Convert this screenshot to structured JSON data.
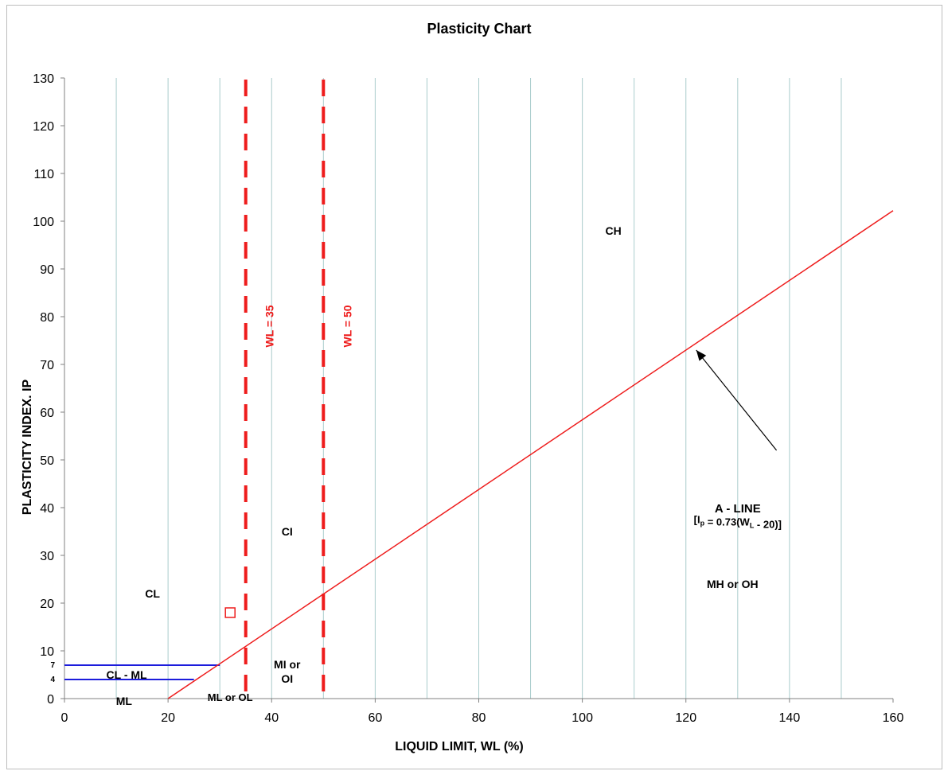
{
  "chart_data": {
    "type": "line",
    "title": "Plasticity Chart",
    "xlabel": "LIQUID LIMIT, WL (%)",
    "ylabel": "PLASTICITY INDEX. IP",
    "xlim": [
      0,
      160
    ],
    "ylim": [
      0,
      130
    ],
    "x_ticks": [
      "0",
      "20",
      "40",
      "60",
      "80",
      "100",
      "120",
      "140",
      "160"
    ],
    "y_ticks": [
      "0",
      "10",
      "20",
      "30",
      "40",
      "50",
      "60",
      "70",
      "80",
      "90",
      "100",
      "110",
      "120",
      "130"
    ],
    "x_minor_grid_step": 10,
    "grid": true,
    "a_line": {
      "x": [
        20,
        160
      ],
      "y": [
        0,
        102.2
      ],
      "color": "#ee1c1c"
    },
    "a_line_label": "A - LINE",
    "a_line_equation": {
      "open": "[I",
      "sub1": "p",
      "mid": " = 0.73(W",
      "sub2": "L",
      "close": " - 20)]"
    },
    "dividers": [
      {
        "x": 35,
        "label": "WL = 35",
        "color": "#ee1c1c",
        "dashed": true
      },
      {
        "x": 50,
        "label": "WL = 50",
        "color": "#ee1c1c",
        "dashed": true
      }
    ],
    "cl_ml_band": {
      "lines": [
        {
          "y": 7,
          "x_end": 30,
          "label": "7"
        },
        {
          "y": 4,
          "x_end": 25,
          "label": "4"
        }
      ],
      "color": "#1c1cdc"
    },
    "regions": [
      {
        "label": "CH",
        "x": 106,
        "y": 98
      },
      {
        "label": "CI",
        "x": 43,
        "y": 35
      },
      {
        "label": "CL",
        "x": 17,
        "y": 22
      },
      {
        "label": "MH or OH",
        "x": 129,
        "y": 24
      },
      {
        "label": "CL - ML",
        "x": 12,
        "y": 5
      },
      {
        "label": "ML",
        "x": 11.5,
        "y": -0.5
      },
      {
        "label": "ML or OL",
        "x": 32,
        "y": 0.3
      }
    ],
    "mi_oi_label": [
      "MI or",
      "OI"
    ],
    "sample_point": {
      "x": 32,
      "y": 18,
      "marker": "square",
      "color": "#ee1c1c"
    },
    "arrow": {
      "from": [
        137.5,
        52
      ],
      "to": [
        122,
        73
      ]
    }
  }
}
